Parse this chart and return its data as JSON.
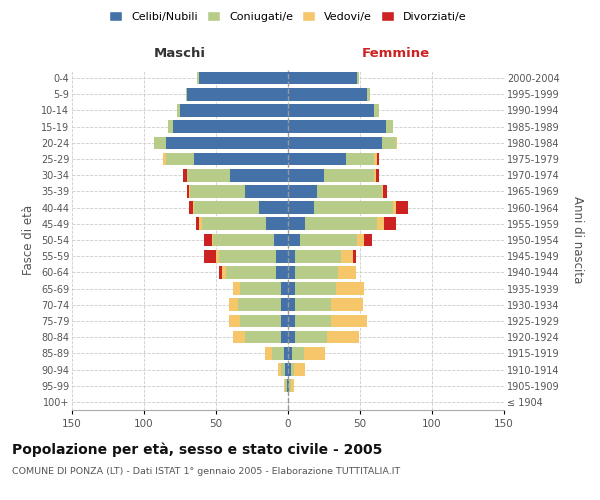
{
  "age_groups": [
    "100+",
    "95-99",
    "90-94",
    "85-89",
    "80-84",
    "75-79",
    "70-74",
    "65-69",
    "60-64",
    "55-59",
    "50-54",
    "45-49",
    "40-44",
    "35-39",
    "30-34",
    "25-29",
    "20-24",
    "15-19",
    "10-14",
    "5-9",
    "0-4"
  ],
  "birth_years": [
    "≤ 1904",
    "1905-1909",
    "1910-1914",
    "1915-1919",
    "1920-1924",
    "1925-1929",
    "1930-1934",
    "1935-1939",
    "1940-1944",
    "1945-1949",
    "1950-1954",
    "1955-1959",
    "1960-1964",
    "1965-1969",
    "1970-1974",
    "1975-1979",
    "1980-1984",
    "1985-1989",
    "1990-1994",
    "1995-1999",
    "2000-2004"
  ],
  "maschi_celibi": [
    0,
    1,
    2,
    3,
    5,
    5,
    5,
    5,
    8,
    8,
    10,
    15,
    20,
    30,
    40,
    65,
    85,
    80,
    75,
    70,
    62
  ],
  "maschi_coniugati": [
    0,
    1,
    3,
    8,
    25,
    28,
    30,
    28,
    35,
    40,
    42,
    45,
    45,
    38,
    30,
    20,
    8,
    3,
    2,
    1,
    1
  ],
  "maschi_vedovi": [
    0,
    1,
    2,
    5,
    8,
    8,
    6,
    5,
    3,
    2,
    1,
    2,
    1,
    1,
    0,
    2,
    0,
    0,
    0,
    0,
    0
  ],
  "maschi_divorziati": [
    0,
    0,
    0,
    0,
    0,
    0,
    0,
    0,
    2,
    8,
    5,
    2,
    3,
    1,
    3,
    0,
    0,
    0,
    0,
    0,
    0
  ],
  "femmine_celibi": [
    0,
    1,
    2,
    3,
    5,
    5,
    5,
    5,
    5,
    5,
    8,
    12,
    18,
    20,
    25,
    40,
    65,
    68,
    60,
    55,
    48
  ],
  "femmine_coniugati": [
    0,
    1,
    2,
    8,
    22,
    25,
    25,
    28,
    30,
    32,
    40,
    50,
    55,
    45,
    35,
    20,
    10,
    5,
    3,
    2,
    1
  ],
  "femmine_vedovi": [
    0,
    2,
    8,
    15,
    22,
    25,
    22,
    20,
    12,
    8,
    5,
    5,
    2,
    1,
    1,
    2,
    1,
    0,
    0,
    0,
    0
  ],
  "femmine_divorziati": [
    0,
    0,
    0,
    0,
    0,
    0,
    0,
    0,
    0,
    2,
    5,
    8,
    8,
    3,
    2,
    1,
    0,
    0,
    0,
    0,
    0
  ],
  "color_celibi": "#4472a8",
  "color_coniugati": "#b8cc8a",
  "color_vedovi": "#f5c76a",
  "color_divorziati": "#cc2222",
  "title": "Popolazione per età, sesso e stato civile - 2005",
  "subtitle": "COMUNE DI PONZA (LT) - Dati ISTAT 1° gennaio 2005 - Elaborazione TUTTITALIA.IT",
  "xlabel_left": "Maschi",
  "xlabel_right": "Femmine",
  "ylabel_left": "Fasce di età",
  "ylabel_right": "Anni di nascita",
  "xlim": 150,
  "background_color": "#ffffff",
  "grid_color": "#cccccc"
}
